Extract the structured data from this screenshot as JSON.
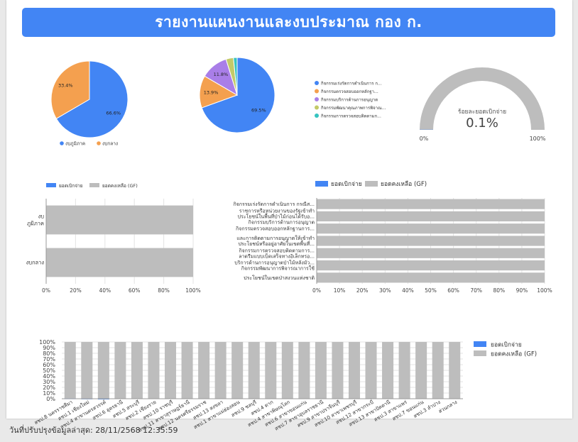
{
  "report": {
    "title": "รายงานแผนงานและงบประมาณ กอง ก.",
    "footer_label": "วันที่ปรับปรุงข้อมูลล่าสุด:",
    "footer_value": "28/11/2568 12:35:59"
  },
  "colors": {
    "blue": "#4285f4",
    "orange": "#f4a04f",
    "purple": "#a97ee8",
    "olive": "#c3ca68",
    "teal": "#36c4c0",
    "gray": "#bdbdbd"
  },
  "chart_data": [
    {
      "id": "pie1",
      "type": "pie",
      "legend": [
        "งบภูมิภาค",
        "งบกลาง"
      ],
      "values": [
        66.6,
        33.4
      ],
      "labels": [
        "66.6%",
        "33.4%"
      ]
    },
    {
      "id": "pie2",
      "type": "pie",
      "legend": [
        "กิจกรรมเร่งรัดการดำเนินการ ก...",
        "กิจกรรมตรวจสอบออกหลักฐา...",
        "กิจกรรมบริการด้านการอนุญาต",
        "กิจกรรมพัฒนาคุณภาพการพิจาณ...",
        "กิจกรรมการตรวจสอบติดตามก..."
      ],
      "values": [
        69.5,
        13.9,
        11.8,
        3.2,
        1.6
      ],
      "labels": [
        "69.5%",
        "13.9%",
        "11.8%",
        "",
        ""
      ]
    },
    {
      "id": "gauge",
      "type": "gauge",
      "label": "ร้อยละยอดเบิกจ่าย",
      "value": 0.1,
      "value_text": "0.1%",
      "min_label": "0%",
      "max_label": "100%"
    },
    {
      "id": "bar1",
      "type": "bar",
      "orientation": "horizontal",
      "stacked": "percent",
      "legend": [
        "ยอดเบิกจ่าย",
        "ยอดคงเหลือ (GF)"
      ],
      "categories": [
        [
          "งบ",
          "ภูมิภาค"
        ],
        [
          "งบกลาง"
        ]
      ],
      "series": [
        {
          "name": "ยอดเบิกจ่าย",
          "values": [
            0.1,
            0
          ]
        },
        {
          "name": "ยอดคงเหลือ (GF)",
          "values": [
            99.9,
            100
          ]
        }
      ],
      "ticks": [
        "0%",
        "20%",
        "40%",
        "60%",
        "80%",
        "100%"
      ]
    },
    {
      "id": "bar2",
      "type": "bar",
      "orientation": "horizontal",
      "stacked": "percent",
      "legend": [
        "ยอดเบิกจ่าย",
        "ยอดคงเหลือ (GF)"
      ],
      "categories": [
        [
          "กิจกรรมเร่งรัดการดำเนินการ กรณีส..."
        ],
        [
          "ราชการหรือหน่วยงานของรัฐเข้าทำ",
          "ประโยชน์ในพื้นที่ป่าไม้ก่อนได้รับอ...",
          "กิจกรรมบริการด้านการอนุญาต"
        ],
        [
          "กิจกรรมตรวจสอบออกหลักฐานการ..."
        ],
        [
          "และการติดตามการอนุญาตให้เข้าทำ",
          "ประโยชน์หรืออยู่อาศัยในเขตพื้นที่..."
        ],
        [
          "กิจกรรมการตรวจสอบติดตามการ...",
          "ลาดรีมแบบเบ็ดเสร็จทางอิเล็กทรอ..."
        ],
        [
          "บริการด้านการอนุญาตป่าไม้หลังมัว...",
          "กิจกรรมพัฒนาการพิจารณาการใช้"
        ],
        [
          "ประโยชน์ในเขตป่าสงวนแห่งชาติ"
        ]
      ],
      "series": [
        {
          "name": "ยอดเบิกจ่าย",
          "values": [
            0.1,
            0,
            0,
            0,
            0,
            0,
            0
          ]
        },
        {
          "name": "ยอดคงเหลือ (GF)",
          "values": [
            99.9,
            100,
            100,
            100,
            100,
            100,
            100
          ]
        }
      ],
      "ticks": [
        "0%",
        "10%",
        "20%",
        "30%",
        "40%",
        "50%",
        "60%",
        "70%",
        "80%",
        "90%",
        "100%"
      ]
    },
    {
      "id": "bar3",
      "type": "bar",
      "orientation": "vertical",
      "stacked": "percent",
      "legend": [
        "ยอดเบิกจ่าย",
        "ยอดคงเหลือ (GF)"
      ],
      "categories": [
        "สชป.8 นครราชสีมา",
        "สชป.1 เชียงใหม่",
        "สชป.4 สาขานครสวรรค์",
        "สชป.6 อุดรธานี",
        "สชป.5 สระบุรี",
        "สชป.2 เชียงราย",
        "สชป.10 ราชบุรี",
        "สชป.11 สาขาสุราษฎร์ธานี",
        "สชป.12 นครศรีธรรมราช",
        "สชป.13 สงขลา",
        "สชป.1 สาขาแม่ฮ่องสอน",
        "สชป.9 ชลบุรี",
        "สชป.4 ตาก",
        "สชป.4 สาขาพิษณุโลก",
        "สชป.6 สาขาขอนแก่น",
        "สชป.7 สาขาอุบลราชธานี",
        "สชป.9 สาขาปราจีนบุรี",
        "สชป.10 สาขาเพชรบุรี",
        "สชป.12 สาขากระบี่",
        "สชป.13 สาขาปัตตานี",
        "สชป.3 สาขาแพร่",
        "สชป.7 ขอนแก่น",
        "สชป.3 ลำปาง",
        "ส่วนกลาง"
      ],
      "series": [
        {
          "name": "ยอดเบิกจ่าย",
          "values": [
            0.8,
            0.6,
            0.3,
            0,
            0,
            0,
            0,
            0,
            0,
            0,
            0,
            0,
            0,
            0,
            0,
            0,
            0,
            0,
            0,
            0,
            0,
            0,
            0,
            0
          ]
        },
        {
          "name": "ยอดคงเหลือ (GF)",
          "values": [
            99.2,
            99.4,
            99.7,
            100,
            100,
            100,
            100,
            100,
            100,
            100,
            100,
            100,
            100,
            100,
            100,
            100,
            100,
            100,
            100,
            100,
            100,
            100,
            100,
            100
          ]
        }
      ],
      "ticks": [
        "0%",
        "10%",
        "20%",
        "30%",
        "40%",
        "50%",
        "60%",
        "70%",
        "80%",
        "90%",
        "100%"
      ]
    }
  ]
}
